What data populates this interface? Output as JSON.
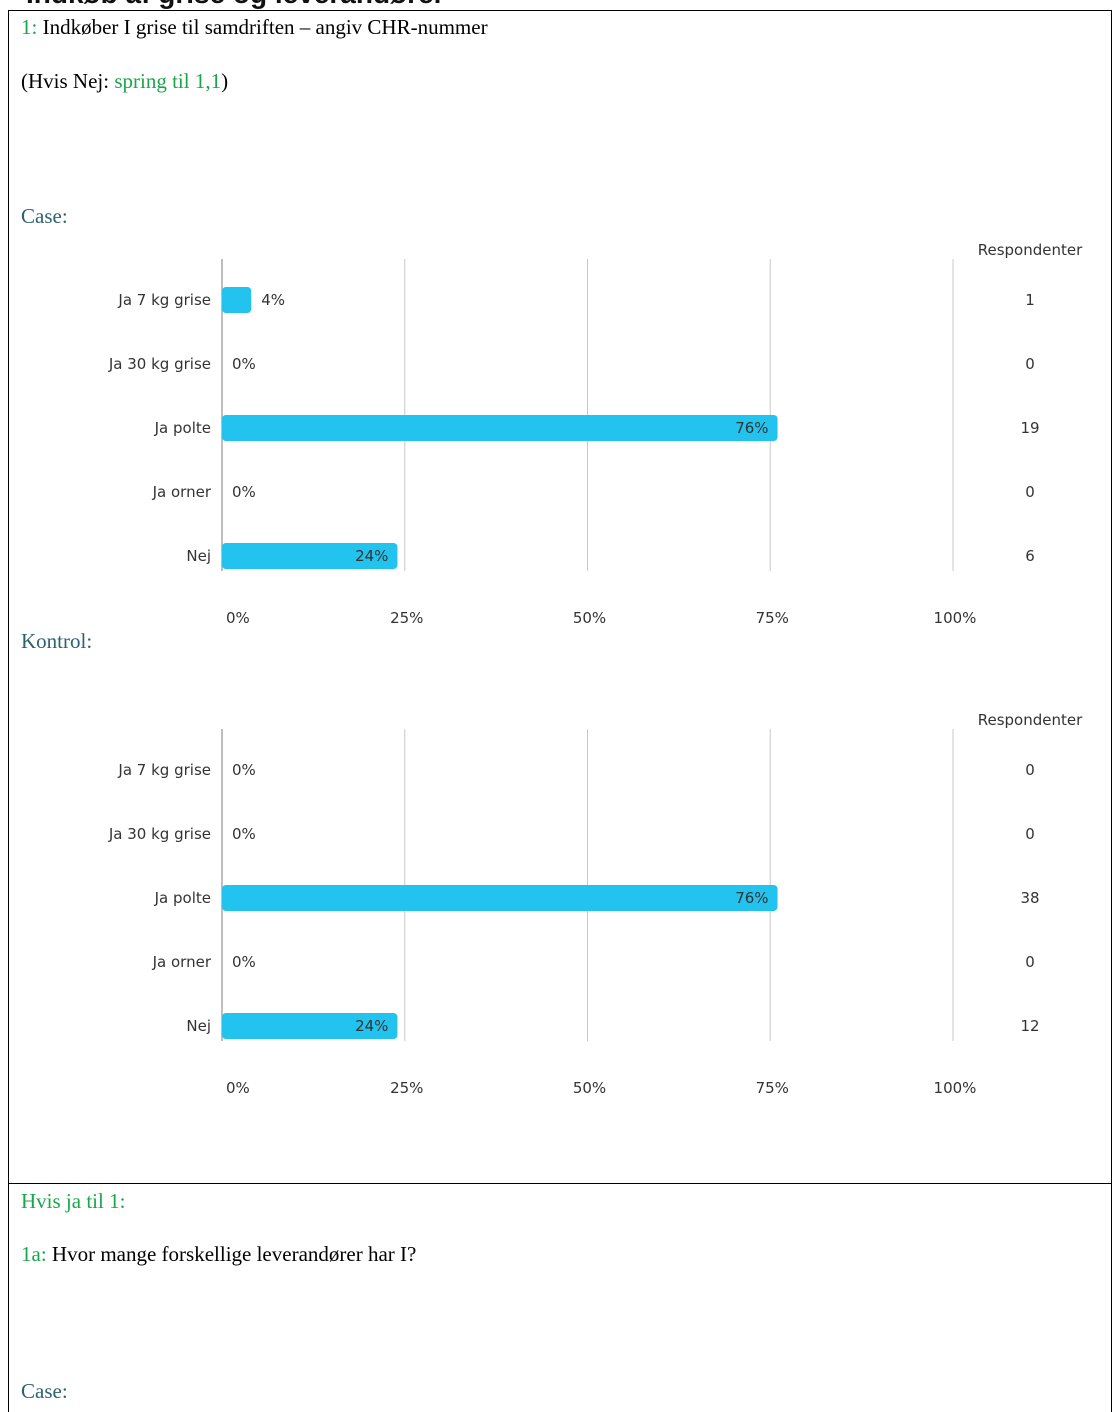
{
  "top_strip_text": "Indkøb af grise og leverandører",
  "question1": {
    "prefix": "1:",
    "text": " Indkøber I grise til samdriften – angiv CHR-nummer",
    "skip_prefix": "(Hvis Nej: ",
    "skip_text": "spring til 1,1",
    "skip_suffix": ")"
  },
  "case_label": "Case:",
  "kontrol_label": "Kontrol:",
  "question1a": {
    "condition": "Hvis ja til 1:",
    "prefix": "1a:",
    "text": " Hvor mange forskellige leverandører har I?",
    "case_label": "Case:"
  },
  "colors": {
    "bar": "#22c3ee",
    "grid": "#c9c9c9",
    "axis": "#a9a9a9",
    "green": "#19a64a",
    "teal": "#2b6370"
  },
  "chart_data": [
    {
      "type": "bar",
      "orientation": "horizontal",
      "group": "Case",
      "categories": [
        "Ja 7 kg grise",
        "Ja 30 kg grise",
        "Ja polte",
        "Ja orner",
        "Nej"
      ],
      "values": [
        4,
        0,
        76,
        0,
        24
      ],
      "value_labels": [
        "4%",
        "0%",
        "76%",
        "0%",
        "24%"
      ],
      "respondents_header": "Respondenter",
      "respondents": [
        "1",
        "0",
        "19",
        "0",
        "6"
      ],
      "xlim": [
        0,
        100
      ],
      "xticks": [
        "0%",
        "25%",
        "50%",
        "75%",
        "100%"
      ],
      "grid": true
    },
    {
      "type": "bar",
      "orientation": "horizontal",
      "group": "Kontrol",
      "categories": [
        "Ja 7 kg grise",
        "Ja 30 kg grise",
        "Ja polte",
        "Ja orner",
        "Nej"
      ],
      "values": [
        0,
        0,
        76,
        0,
        24
      ],
      "value_labels": [
        "0%",
        "0%",
        "76%",
        "0%",
        "24%"
      ],
      "respondents_header": "Respondenter",
      "respondents": [
        "0",
        "0",
        "38",
        "0",
        "12"
      ],
      "xlim": [
        0,
        100
      ],
      "xticks": [
        "0%",
        "25%",
        "50%",
        "75%",
        "100%"
      ],
      "grid": true
    }
  ]
}
